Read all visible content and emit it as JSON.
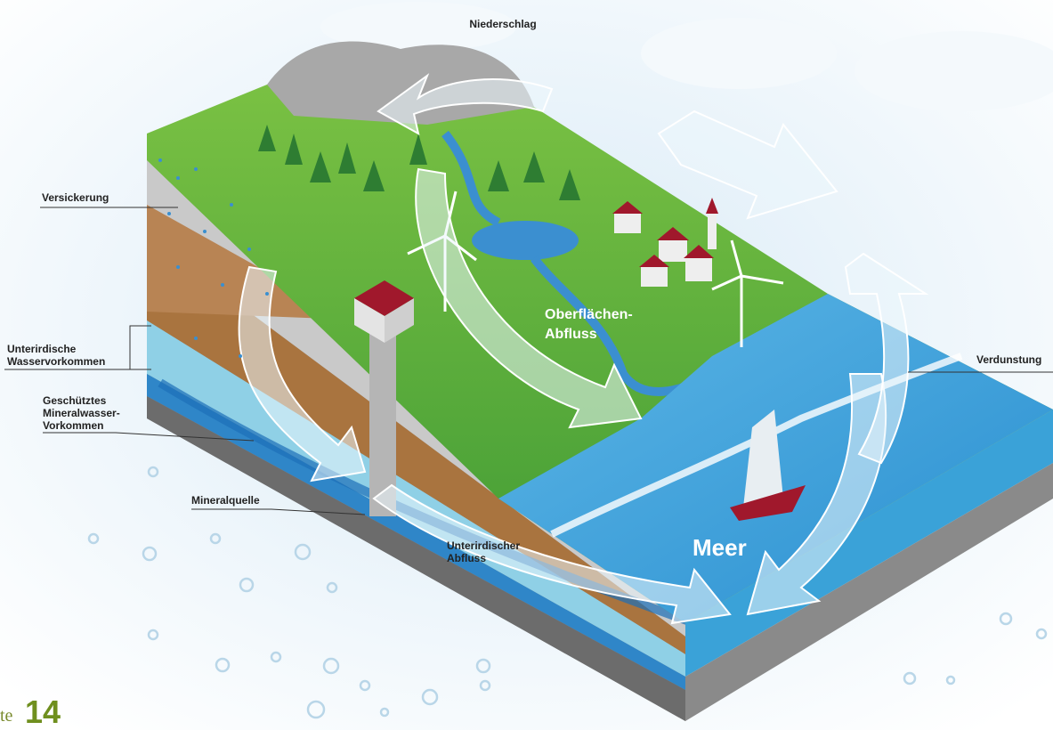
{
  "labels": {
    "precipitation": [
      "Niederschlag"
    ],
    "infiltration": [
      "Versickerung"
    ],
    "groundwater": [
      "Unterirdische",
      "Wasservorkommen"
    ],
    "mineral_water": [
      "Geschütztes",
      "Mineralwasser-",
      "Vorkommen"
    ],
    "mineral_spring": [
      "Mineralquelle"
    ],
    "surface_runoff": [
      "Oberflächen-",
      "Abfluss"
    ],
    "evaporation": [
      "Verdunstung"
    ],
    "underground_runoff": [
      "Unterirdischer",
      "Abfluss"
    ],
    "sea": [
      "Meer"
    ]
  },
  "page": {
    "prefix": "te",
    "number": "14"
  }
}
